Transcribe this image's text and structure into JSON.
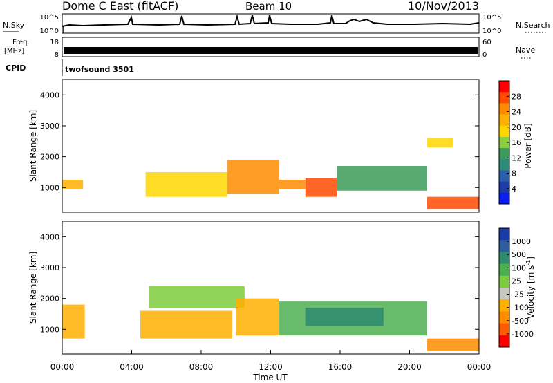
{
  "header": {
    "station": "Dome C East (fitACF)",
    "beam": "Beam 10",
    "date": "10/Nov/2013"
  },
  "top_panels": {
    "nsky_label": "N.Sky",
    "nsky_ticks": [
      "10^5",
      "10^0"
    ],
    "nsearch_label": "N.Search",
    "nsearch_ticks": [
      "10^5",
      "10^0"
    ],
    "freq_label": "Freq.",
    "freq_unit": "[MHz]",
    "freq_ticks": [
      "18",
      "8"
    ],
    "nave_label": "Nave",
    "nave_ticks": [
      "60",
      "0"
    ],
    "cpid_label": "CPID",
    "cpid_value": "twofsound 3501"
  },
  "chart_data": [
    {
      "type": "heatmap",
      "name": "power",
      "ylabel": "Slant Range [km]",
      "yticks": [
        "1000",
        "2000",
        "3000",
        "4000"
      ],
      "ylim": [
        200,
        4500
      ],
      "xlim": [
        0,
        24
      ],
      "colorbar_label": "Power [dB]",
      "colorbar_ticks": [
        "28",
        "24",
        "20",
        "16",
        "12",
        "8",
        "4"
      ],
      "colorbar_colors": [
        "#ff0000",
        "#ff4a00",
        "#ff8c00",
        "#ffb000",
        "#ffd700",
        "#8ccf3c",
        "#3c9a5a",
        "#2e8b7a",
        "#2b5ea8",
        "#1e3ca8",
        "#0a1ef0"
      ],
      "bands": [
        {
          "t": [
            0.0,
            1.2
          ],
          "range": [
            950,
            1250
          ],
          "value": 22
        },
        {
          "t": [
            4.8,
            9.5
          ],
          "range": [
            700,
            1500
          ],
          "value": 20
        },
        {
          "t": [
            9.5,
            12.5
          ],
          "range": [
            800,
            1900
          ],
          "value": 24
        },
        {
          "t": [
            12.5,
            14.0
          ],
          "range": [
            950,
            1250
          ],
          "value": 25
        },
        {
          "t": [
            14.0,
            15.8
          ],
          "range": [
            700,
            1300
          ],
          "value": 27
        },
        {
          "t": [
            15.8,
            21.0
          ],
          "range": [
            900,
            1700
          ],
          "value": 14
        },
        {
          "t": [
            21.0,
            24.0
          ],
          "range": [
            300,
            700
          ],
          "value": 28
        },
        {
          "t": [
            21.0,
            22.5
          ],
          "range": [
            2300,
            2600
          ],
          "value": 20
        }
      ]
    },
    {
      "type": "heatmap",
      "name": "velocity",
      "ylabel": "Slant Range [km]",
      "yticks": [
        "1000",
        "2000",
        "3000",
        "4000"
      ],
      "ylim": [
        200,
        4500
      ],
      "xlim": [
        0,
        24
      ],
      "xlabel": "Time UT",
      "xticks": [
        "00:00",
        "04:00",
        "08:00",
        "12:00",
        "16:00",
        "20:00",
        "00:00"
      ],
      "colorbar_label": "Velocity [m s",
      "colorbar_sup": "-1",
      "colorbar_unit_close": "]",
      "colorbar_ticks": [
        "1000",
        "500",
        "100",
        "25",
        "-25",
        "-100",
        "-500",
        "-1000"
      ],
      "colorbar_colors": [
        "#1a3aa8",
        "#2e5c9e",
        "#2e8b6e",
        "#4caf50",
        "#7ccd3c",
        "#c8c8c0",
        "#ffb000",
        "#ff8c00",
        "#ff5a00",
        "#ff0000"
      ],
      "bands": [
        {
          "t": [
            0.0,
            1.3
          ],
          "range": [
            700,
            1800
          ],
          "value": -100
        },
        {
          "t": [
            4.5,
            9.8
          ],
          "range": [
            700,
            1600
          ],
          "value": -100
        },
        {
          "t": [
            5.0,
            10.5
          ],
          "range": [
            1700,
            2400
          ],
          "value": 25
        },
        {
          "t": [
            10.0,
            12.5
          ],
          "range": [
            800,
            2000
          ],
          "value": -100
        },
        {
          "t": [
            12.5,
            21.0
          ],
          "range": [
            800,
            1900
          ],
          "value": 100
        },
        {
          "t": [
            14.0,
            18.5
          ],
          "range": [
            1100,
            1700
          ],
          "value": 500
        },
        {
          "t": [
            21.0,
            24.0
          ],
          "range": [
            300,
            700
          ],
          "value": -300
        }
      ]
    }
  ]
}
